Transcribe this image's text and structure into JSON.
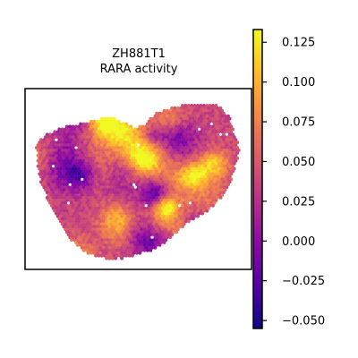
{
  "chart_data": {
    "type": "heatmap",
    "title_line1": "ZH881T1",
    "title_line2": "RARA activity",
    "xlabel": "",
    "ylabel": "",
    "colormap": "plasma",
    "colorbar": {
      "range": [
        -0.055,
        0.133
      ],
      "ticks": [
        -0.05,
        -0.025,
        0.0,
        0.025,
        0.05,
        0.075,
        0.1,
        0.125
      ],
      "tick_labels": [
        "−0.050",
        "−0.025",
        "0.000",
        "0.025",
        "0.050",
        "0.075",
        "0.100",
        "0.125"
      ]
    },
    "spots": {
      "shape": "hexagonal spatial spot grid, heart-shaped tissue outline",
      "value_range": [
        -0.055,
        0.133
      ],
      "pattern": "mixed low (purple) and high (orange/yellow) patches"
    }
  }
}
